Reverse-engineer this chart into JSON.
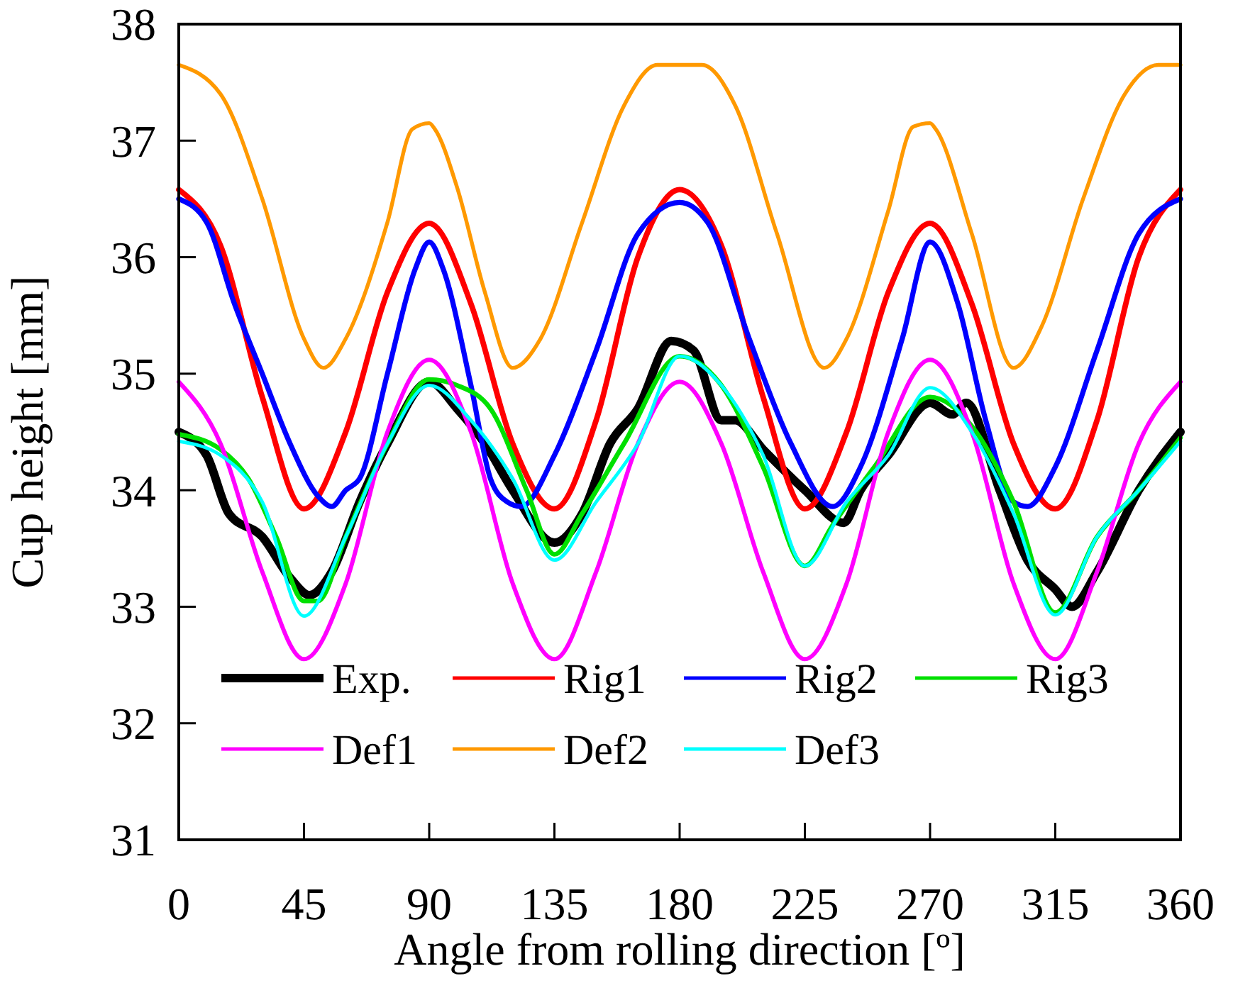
{
  "chart_data": {
    "type": "line",
    "xlabel": "Angle from rolling direction [º]",
    "ylabel": "Cup height [mm]",
    "xlim": [
      0,
      360
    ],
    "ylim": [
      31,
      38
    ],
    "xticks": [
      0,
      45,
      90,
      135,
      180,
      225,
      270,
      315,
      360
    ],
    "yticks": [
      31,
      32,
      33,
      34,
      35,
      36,
      37,
      38
    ],
    "grid": false,
    "legend": "bottom",
    "marker": "none",
    "line_style": "solid",
    "series": [
      {
        "name": "Exp.",
        "color": "#000000",
        "x": [
          0,
          10,
          18,
          30,
          40,
          47,
          55,
          65,
          75,
          90,
          100,
          110,
          120,
          135,
          145,
          155,
          165,
          177,
          185,
          195,
          200,
          210,
          225,
          239,
          245,
          255,
          270,
          278,
          283,
          295,
          305,
          315,
          321,
          330,
          345,
          360
        ],
        "values": [
          34.5,
          34.3,
          33.8,
          33.6,
          33.25,
          33.1,
          33.3,
          33.9,
          34.4,
          34.93,
          34.7,
          34.4,
          34.0,
          33.55,
          33.8,
          34.4,
          34.7,
          35.28,
          35.2,
          34.6,
          34.6,
          34.35,
          34.0,
          33.72,
          34.0,
          34.3,
          34.75,
          34.65,
          34.75,
          34.0,
          33.4,
          33.15,
          33.0,
          33.3,
          34.0,
          34.5
        ]
      },
      {
        "name": "Rig1",
        "color": "#ff0000",
        "x": [
          0,
          15,
          30,
          45,
          60,
          75,
          90,
          105,
          120,
          135,
          150,
          165,
          180,
          195,
          210,
          225,
          240,
          255,
          270,
          285,
          300,
          315,
          330,
          345,
          360
        ],
        "values": [
          36.58,
          36.1,
          34.8,
          33.84,
          34.5,
          35.7,
          36.29,
          35.6,
          34.4,
          33.84,
          34.6,
          36.0,
          36.58,
          36.1,
          34.8,
          33.84,
          34.5,
          35.7,
          36.29,
          35.6,
          34.4,
          33.84,
          34.6,
          36.0,
          36.58
        ]
      },
      {
        "name": "Rig2",
        "color": "#0000ff",
        "x": [
          0,
          10,
          20,
          30,
          40,
          50,
          55,
          60,
          65,
          75,
          85,
          90,
          95,
          105,
          112,
          118,
          123,
          135,
          150,
          165,
          180,
          190,
          205,
          220,
          235,
          245,
          260,
          270,
          280,
          290,
          300,
          305,
          315,
          330,
          345,
          360
        ],
        "values": [
          36.5,
          36.3,
          35.6,
          35.0,
          34.4,
          33.95,
          33.86,
          34.0,
          34.1,
          35.0,
          35.9,
          36.13,
          35.9,
          34.9,
          34.1,
          33.9,
          33.86,
          34.3,
          35.2,
          36.2,
          36.47,
          36.3,
          35.3,
          34.4,
          33.86,
          34.2,
          35.3,
          36.13,
          35.6,
          34.6,
          33.9,
          33.86,
          34.2,
          35.2,
          36.2,
          36.5
        ]
      },
      {
        "name": "Rig3",
        "color": "#00e000",
        "x": [
          0,
          15,
          25,
          35,
          45,
          50,
          60,
          75,
          90,
          100,
          112,
          125,
          135,
          145,
          160,
          180,
          195,
          210,
          225,
          235,
          250,
          270,
          285,
          300,
          315,
          330,
          345,
          360
        ],
        "values": [
          34.48,
          34.35,
          34.1,
          33.6,
          33.05,
          33.05,
          33.6,
          34.4,
          34.95,
          34.9,
          34.7,
          34.0,
          33.45,
          33.8,
          34.4,
          35.15,
          34.9,
          34.2,
          33.35,
          33.7,
          34.2,
          34.8,
          34.55,
          33.9,
          32.95,
          33.6,
          34.0,
          34.45
        ]
      },
      {
        "name": "Def1",
        "color": "#ff00ff",
        "x": [
          0,
          15,
          30,
          45,
          60,
          75,
          90,
          105,
          120,
          135,
          150,
          165,
          180,
          195,
          210,
          225,
          240,
          255,
          270,
          285,
          300,
          315,
          330,
          345,
          360
        ],
        "values": [
          34.93,
          34.4,
          33.3,
          32.55,
          33.2,
          34.5,
          35.12,
          34.5,
          33.2,
          32.55,
          33.3,
          34.4,
          34.93,
          34.4,
          33.3,
          32.55,
          33.2,
          34.5,
          35.12,
          34.5,
          33.2,
          32.55,
          33.3,
          34.4,
          34.93
        ]
      },
      {
        "name": "Def2",
        "color": "#ff9900",
        "x": [
          0,
          15,
          30,
          45,
          52,
          60,
          75,
          84,
          90,
          92,
          100,
          110,
          120,
          130,
          145,
          160,
          172,
          188,
          200,
          215,
          232,
          240,
          255,
          264,
          270,
          272,
          285,
          300,
          310,
          325,
          340,
          352,
          360
        ],
        "values": [
          37.65,
          37.4,
          36.5,
          35.3,
          35.05,
          35.3,
          36.3,
          37.1,
          37.15,
          37.1,
          36.6,
          35.7,
          35.05,
          35.3,
          36.3,
          37.3,
          37.65,
          37.65,
          37.3,
          36.2,
          35.05,
          35.3,
          36.4,
          37.12,
          37.15,
          37.1,
          36.2,
          35.05,
          35.4,
          36.5,
          37.4,
          37.65,
          37.65
        ]
      },
      {
        "name": "Def3",
        "color": "#00ffff",
        "x": [
          0,
          15,
          30,
          45,
          60,
          75,
          90,
          105,
          120,
          135,
          150,
          165,
          180,
          195,
          210,
          225,
          240,
          255,
          270,
          285,
          300,
          315,
          330,
          345,
          360
        ],
        "values": [
          34.42,
          34.3,
          33.9,
          32.92,
          33.6,
          34.4,
          34.9,
          34.6,
          34.1,
          33.4,
          33.9,
          34.4,
          35.15,
          34.9,
          34.3,
          33.35,
          33.9,
          34.3,
          34.88,
          34.5,
          33.8,
          32.93,
          33.6,
          34.0,
          34.42
        ]
      }
    ]
  }
}
